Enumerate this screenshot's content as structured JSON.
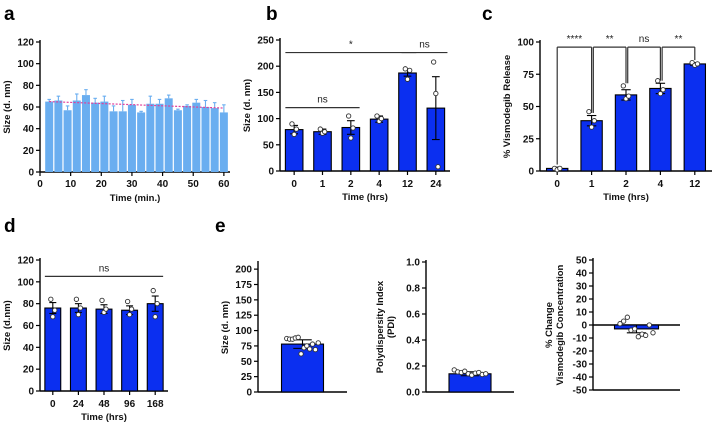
{
  "panel_letters": {
    "a": "a",
    "b": "b",
    "c": "c",
    "d": "d",
    "e": "e"
  },
  "chart_data": [
    {
      "id": "a",
      "type": "bar",
      "xlabel": "Time (min.)",
      "ylabel": [
        "Size (d. nm)"
      ],
      "ylim": [
        0,
        120
      ],
      "yticks": [
        0,
        20,
        40,
        60,
        80,
        100,
        120
      ],
      "xlim": [
        0,
        62
      ],
      "xticks": [
        0,
        10,
        20,
        30,
        40,
        50,
        60
      ],
      "x": [
        3,
        6,
        9,
        12,
        15,
        18,
        21,
        24,
        27,
        30,
        33,
        36,
        39,
        42,
        45,
        48,
        51,
        54,
        57,
        60
      ],
      "values": [
        65,
        66,
        57,
        66,
        71,
        64,
        65,
        56,
        56,
        62,
        55,
        63,
        63,
        68,
        57,
        61,
        64,
        60,
        59,
        55
      ],
      "errors": [
        2,
        4,
        4,
        6,
        5,
        4,
        5,
        5,
        10,
        5,
        1,
        7,
        4,
        3,
        1,
        1,
        3,
        6,
        5,
        7
      ],
      "trend": {
        "from": [
          3,
          65
        ],
        "to": [
          60,
          59
        ],
        "color": "#e0409a"
      },
      "color": "#6aaef0",
      "edge": "#6aaef0"
    },
    {
      "id": "b",
      "type": "bar",
      "xlabel": "Time (hrs)",
      "ylabel": [
        "Size (d. nm)"
      ],
      "ylim": [
        0,
        250
      ],
      "yticks": [
        0,
        50,
        100,
        150,
        200,
        250
      ],
      "categories": [
        "0",
        "1",
        "2",
        "4",
        "12",
        "24"
      ],
      "values": [
        79,
        75,
        83,
        99,
        187,
        120
      ],
      "errors": [
        8,
        5,
        13,
        6,
        6,
        60
      ],
      "points": [
        [
          90,
          70,
          80
        ],
        [
          80,
          72,
          75
        ],
        [
          105,
          63,
          82
        ],
        [
          105,
          95,
          100
        ],
        [
          195,
          175,
          192
        ],
        [
          208,
          148,
          8
        ]
      ],
      "significance": [
        {
          "from": 0,
          "to": 4,
          "y": 226,
          "label": "*",
          "type": "line"
        },
        {
          "from": 4.1,
          "to": 5.1,
          "y": 226,
          "label": "ns",
          "type": "line"
        },
        {
          "from": 0,
          "to": 2,
          "y": 121,
          "label": "ns",
          "type": "line"
        }
      ],
      "color": "#0b2ff0",
      "edge": "#000"
    },
    {
      "id": "c",
      "type": "bar",
      "xlabel": "Time (hrs)",
      "ylabel": [
        "% Vismodegib Release"
      ],
      "ylim": [
        0,
        100
      ],
      "yticks": [
        0,
        25,
        50,
        75,
        100
      ],
      "categories": [
        "0",
        "1",
        "2",
        "4",
        "12"
      ],
      "values": [
        2,
        39,
        59,
        64,
        83
      ],
      "errors": [
        1,
        4,
        4,
        4,
        1
      ],
      "points": [
        [
          2,
          1,
          2
        ],
        [
          46,
          34,
          39
        ],
        [
          66,
          56,
          58
        ],
        [
          70,
          60,
          63
        ],
        [
          84,
          82,
          83
        ]
      ],
      "significance": [
        {
          "from": 0,
          "to": 1,
          "y": 96,
          "label": "****",
          "type": "bracket",
          "legs": [
            5,
            45
          ]
        },
        {
          "from": 1.05,
          "to": 2,
          "y": 96,
          "label": "**",
          "type": "bracket",
          "legs": [
            45,
            68
          ]
        },
        {
          "from": 2.05,
          "to": 3,
          "y": 96,
          "label": "ns",
          "type": "bracket",
          "legs": [
            68,
            70
          ]
        },
        {
          "from": 3.05,
          "to": 4,
          "y": 96,
          "label": "**",
          "type": "bracket",
          "legs": [
            70,
            86
          ]
        }
      ],
      "color": "#0b2ff0",
      "edge": "#000"
    },
    {
      "id": "d",
      "type": "bar",
      "xlabel": "Time (hrs)",
      "ylabel": [
        "Size (d.nm)"
      ],
      "ylim": [
        0,
        120
      ],
      "yticks": [
        0,
        20,
        40,
        60,
        80,
        100,
        120
      ],
      "categories": [
        "0",
        "24",
        "48",
        "96",
        "168"
      ],
      "values": [
        76,
        76,
        75,
        74,
        80
      ],
      "errors": [
        5,
        4,
        4,
        4,
        7
      ],
      "points": [
        [
          84,
          68,
          74
        ],
        [
          84,
          70,
          76
        ],
        [
          83,
          72,
          75
        ],
        [
          82,
          70,
          75
        ],
        [
          92,
          68,
          80
        ]
      ],
      "significance": [
        {
          "from": 0,
          "to": 4,
          "y": 105,
          "label": "ns",
          "type": "line"
        }
      ],
      "color": "#0b2ff0",
      "edge": "#000"
    },
    {
      "id": "e1",
      "type": "bar",
      "xlabel": "",
      "ylabel": [
        "Size (d. nm)"
      ],
      "ylim": [
        0,
        210
      ],
      "yticks": [
        0,
        25,
        50,
        75,
        100,
        125,
        150,
        175,
        200
      ],
      "categories": [
        ""
      ],
      "values": [
        78
      ],
      "errors": [
        7
      ],
      "points": [
        [
          87,
          86,
          86,
          88,
          89,
          62,
          72,
          75,
          70,
          78,
          69,
          80
        ]
      ],
      "color": "#0b2ff0",
      "edge": "#000"
    },
    {
      "id": "e2",
      "type": "bar",
      "xlabel": "",
      "ylabel": [
        "Polydispersity Index",
        "(PDI)"
      ],
      "ylim": [
        0,
        1.0
      ],
      "yticks": [
        0.0,
        0.2,
        0.4,
        0.6,
        0.8,
        1.0
      ],
      "decimals": 1,
      "categories": [
        ""
      ],
      "values": [
        0.14
      ],
      "errors": [
        0.015
      ],
      "points": [
        [
          0.17,
          0.155,
          0.15,
          0.16,
          0.14,
          0.13,
          0.145,
          0.15,
          0.135,
          0.14
        ]
      ],
      "color": "#0b2ff0",
      "edge": "#000"
    },
    {
      "id": "e3",
      "type": "bar",
      "xlabel": "",
      "ylabel": [
        "% Change",
        "Vismodegib Concentration"
      ],
      "ylim": [
        -50,
        50
      ],
      "yticks": [
        -50,
        -40,
        -30,
        -20,
        -10,
        0,
        10,
        20,
        30,
        40,
        50
      ],
      "zero_line": true,
      "categories": [
        ""
      ],
      "values": [
        -3
      ],
      "errors": [
        3
      ],
      "points": [
        [
          1,
          3,
          6,
          -4,
          -3,
          -9,
          -7,
          -8,
          0,
          -6
        ]
      ],
      "color": "#0b2ff0",
      "edge": "#000"
    }
  ]
}
